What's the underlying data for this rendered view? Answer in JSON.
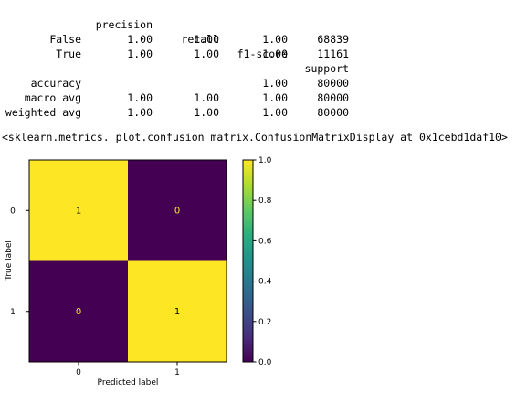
{
  "report": {
    "header": [
      "precision",
      "recall",
      "f1-score",
      "support"
    ],
    "rows": [
      {
        "label": "False",
        "precision": "1.00",
        "recall": "1.00",
        "f1": "1.00",
        "support": "68839"
      },
      {
        "label": "True",
        "precision": "1.00",
        "recall": "1.00",
        "f1": "1.00",
        "support": "11161"
      },
      {
        "label": "accuracy",
        "precision": "",
        "recall": "",
        "f1": "1.00",
        "support": "80000"
      },
      {
        "label": "macro avg",
        "precision": "1.00",
        "recall": "1.00",
        "f1": "1.00",
        "support": "80000"
      },
      {
        "label": "weighted avg",
        "precision": "1.00",
        "recall": "1.00",
        "f1": "1.00",
        "support": "80000"
      }
    ]
  },
  "repr_text": "<sklearn.metrics._plot.confusion_matrix.ConfusionMatrixDisplay at 0x1cebd1daf10>",
  "chart_data": {
    "type": "heatmap",
    "title": "",
    "xlabel": "Predicted label",
    "ylabel": "True label",
    "x_categories": [
      "0",
      "1"
    ],
    "y_categories": [
      "0",
      "1"
    ],
    "values": [
      [
        1,
        0
      ],
      [
        0,
        1
      ]
    ],
    "cell_labels": [
      [
        "1",
        "0"
      ],
      [
        "0",
        "1"
      ]
    ],
    "colormap": "viridis",
    "colors": {
      "high": "#fde725",
      "low": "#440154"
    },
    "colorbar": {
      "range": [
        0.0,
        1.0
      ],
      "ticks": [
        0.0,
        0.2,
        0.4,
        0.6,
        0.8,
        1.0
      ],
      "tick_labels": [
        "0.0",
        "0.2",
        "0.4",
        "0.6",
        "0.8",
        "1.0"
      ]
    }
  }
}
